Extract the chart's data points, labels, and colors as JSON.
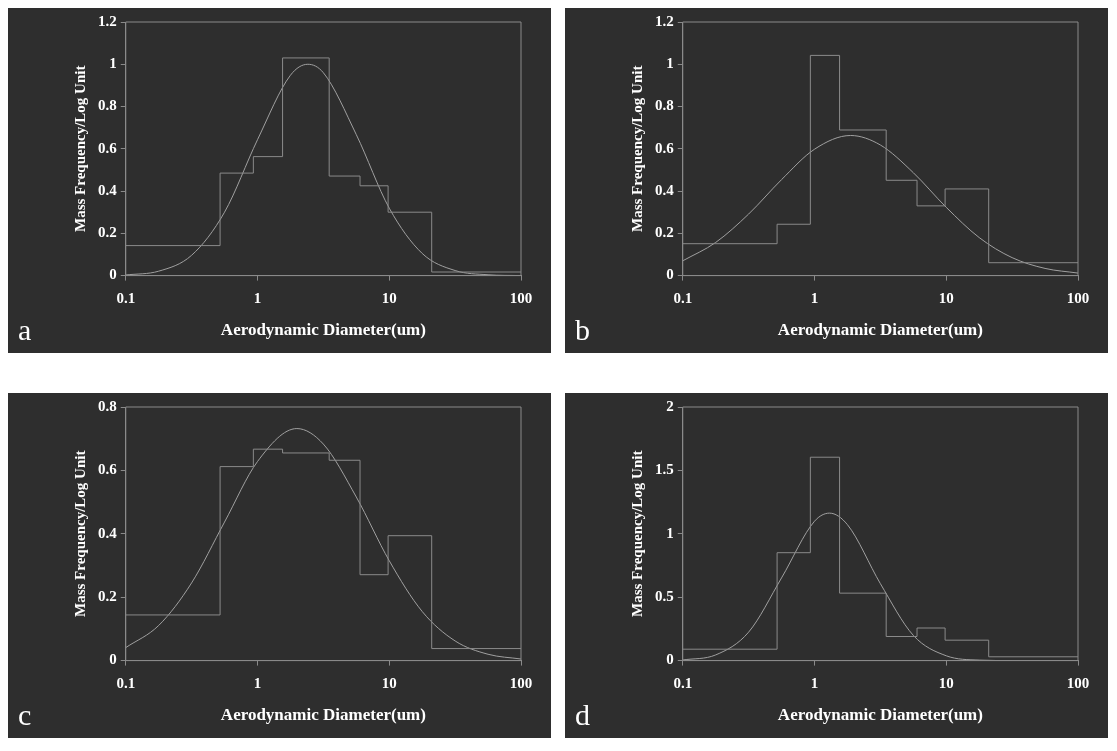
{
  "chart_data": [
    {
      "type": "histogram",
      "xlabel": "Aerodynamic Diameter(um)",
      "ylabel": "Mass Frequency/Log Unit",
      "annotations": [
        "a"
      ],
      "bins": [
        0.1,
        0.52,
        0.93,
        1.55,
        3.5,
        6.0,
        9.8,
        21,
        100
      ],
      "values": [
        0.142,
        0.485,
        0.563,
        1.03,
        0.471,
        0.425,
        0.3,
        0.017
      ],
      "color": "#8a8a8a",
      "series": [
        {
          "type": "line",
          "color": "#a0a0a0",
          "x": [
            0.1,
            0.178,
            0.316,
            0.562,
            1,
            1.778,
            2.41,
            3.162,
            5.623,
            10,
            17.78,
            31.62,
            56.23,
            100
          ],
          "values": [
            0.003,
            0.021,
            0.096,
            0.3,
            0.643,
            0.948,
            1,
            0.96,
            0.667,
            0.319,
            0.105,
            0.024,
            0.004,
            0
          ]
        }
      ],
      "xlim": [
        0.1,
        100
      ],
      "xticks": [
        0.1,
        1,
        10,
        100
      ],
      "ylim": [
        0,
        1.2
      ],
      "yticks": [
        0,
        0.2,
        0.4,
        0.6,
        0.8,
        1,
        1.2
      ],
      "log": "x",
      "grid": false,
      "legend": false,
      "marker": "none"
    },
    {
      "type": "histogram",
      "xlabel": "Aerodynamic Diameter(um)",
      "ylabel": "Mass Frequency/Log Unit",
      "annotations": [
        "b"
      ],
      "bins": [
        0.1,
        0.52,
        0.93,
        1.55,
        3.5,
        6.0,
        9.8,
        21,
        100
      ],
      "values": [
        0.151,
        0.243,
        1.042,
        0.689,
        0.451,
        0.33,
        0.41,
        0.061
      ],
      "color": "#8a8a8a",
      "series": [
        {
          "type": "line",
          "color": "#a0a0a0",
          "x": [
            0.1,
            0.178,
            0.316,
            0.562,
            1,
            1.88,
            3.162,
            5.623,
            10,
            17.78,
            31.62,
            56.23,
            100
          ],
          "values": [
            0.07,
            0.157,
            0.291,
            0.454,
            0.598,
            0.663,
            0.618,
            0.487,
            0.323,
            0.18,
            0.085,
            0.034,
            0.012
          ]
        }
      ],
      "xlim": [
        0.1,
        100
      ],
      "xticks": [
        0.1,
        1,
        10,
        100
      ],
      "ylim": [
        0,
        1.2
      ],
      "yticks": [
        0,
        0.2,
        0.4,
        0.6,
        0.8,
        1,
        1.2
      ],
      "log": "x",
      "grid": false,
      "legend": false,
      "marker": "none"
    },
    {
      "type": "histogram",
      "xlabel": "Aerodynamic Diameter(um)",
      "ylabel": "Mass Frequency/Log Unit",
      "annotations": [
        "c"
      ],
      "bins": [
        0.1,
        0.52,
        0.93,
        1.55,
        3.5,
        6.0,
        9.8,
        21,
        100
      ],
      "values": [
        0.144,
        0.612,
        0.667,
        0.655,
        0.632,
        0.271,
        0.394,
        0.038
      ],
      "color": "#8a8a8a",
      "series": [
        {
          "type": "line",
          "color": "#a0a0a0",
          "x": [
            0.1,
            0.178,
            0.316,
            0.562,
            1,
            1.99,
            3.162,
            5.623,
            10,
            17.78,
            31.62,
            56.23,
            100
          ],
          "values": [
            0.041,
            0.111,
            0.245,
            0.437,
            0.628,
            0.732,
            0.683,
            0.516,
            0.315,
            0.155,
            0.062,
            0.02,
            0.005
          ]
        }
      ],
      "xlim": [
        0.1,
        100
      ],
      "xticks": [
        0.1,
        1,
        10,
        100
      ],
      "ylim": [
        0,
        0.8
      ],
      "yticks": [
        0,
        0.2,
        0.4,
        0.6,
        0.8
      ],
      "log": "x",
      "grid": false,
      "legend": false,
      "marker": "none"
    },
    {
      "type": "histogram",
      "xlabel": "Aerodynamic Diameter(um)",
      "ylabel": "Mass Frequency/Log Unit",
      "annotations": [
        "d"
      ],
      "bins": [
        0.1,
        0.52,
        0.93,
        1.55,
        3.5,
        6.0,
        9.8,
        21,
        100
      ],
      "values": [
        0.09,
        0.851,
        1.604,
        0.532,
        0.19,
        0.257,
        0.161,
        0.03
      ],
      "color": "#8a8a8a",
      "series": [
        {
          "type": "line",
          "color": "#a0a0a0",
          "x": [
            0.1,
            0.178,
            0.316,
            0.562,
            1,
            1.3,
            1.778,
            3.162,
            5.623,
            10,
            17.78,
            31.62
          ],
          "values": [
            0.005,
            0.045,
            0.224,
            0.652,
            1.099,
            1.163,
            1.072,
            0.607,
            0.199,
            0.038,
            0.004,
            0
          ]
        }
      ],
      "xlim": [
        0.1,
        100
      ],
      "xticks": [
        0.1,
        1,
        10,
        100
      ],
      "ylim": [
        0,
        2
      ],
      "yticks": [
        0,
        0.5,
        1,
        1.5,
        2
      ],
      "log": "x",
      "grid": false,
      "legend": false,
      "marker": "none"
    }
  ]
}
